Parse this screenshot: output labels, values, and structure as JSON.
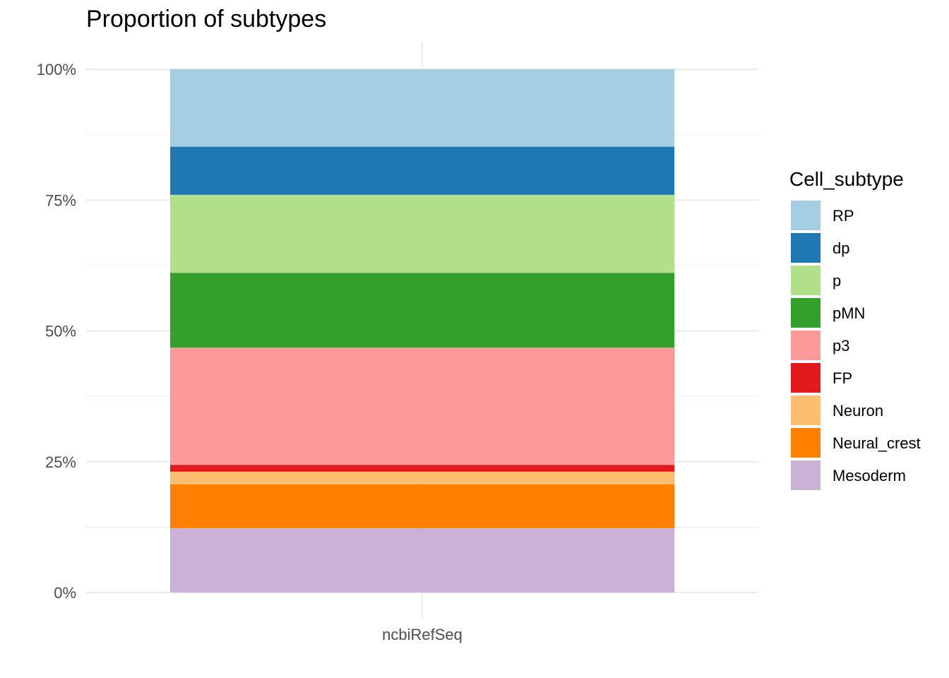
{
  "chart_data": {
    "type": "bar",
    "stacked": true,
    "normalized": true,
    "title": "Proportion of subtypes",
    "xlabel": "",
    "ylabel": "",
    "categories": [
      "ncbiRefSeq"
    ],
    "ylim": [
      0,
      1
    ],
    "y_ticks": [
      "0%",
      "25%",
      "50%",
      "75%",
      "100%"
    ],
    "grid": true,
    "legend": {
      "title": "Cell_subtype",
      "position": "right"
    },
    "series": [
      {
        "name": "RP",
        "values": [
          0.148
        ],
        "color": "#A6CEE3"
      },
      {
        "name": "dp",
        "values": [
          0.092
        ],
        "color": "#1F78B4"
      },
      {
        "name": "p",
        "values": [
          0.149
        ],
        "color": "#B2DF8A"
      },
      {
        "name": "pMN",
        "values": [
          0.143
        ],
        "color": "#33A02C"
      },
      {
        "name": "p3",
        "values": [
          0.224
        ],
        "color": "#FB9A99"
      },
      {
        "name": "FP",
        "values": [
          0.013
        ],
        "color": "#E31A1C"
      },
      {
        "name": "Neuron",
        "values": [
          0.024
        ],
        "color": "#FDBF6F"
      },
      {
        "name": "Neural_crest",
        "values": [
          0.084
        ],
        "color": "#FF7F00"
      },
      {
        "name": "Mesoderm",
        "values": [
          0.123
        ],
        "color": "#CAB2D6"
      }
    ]
  }
}
